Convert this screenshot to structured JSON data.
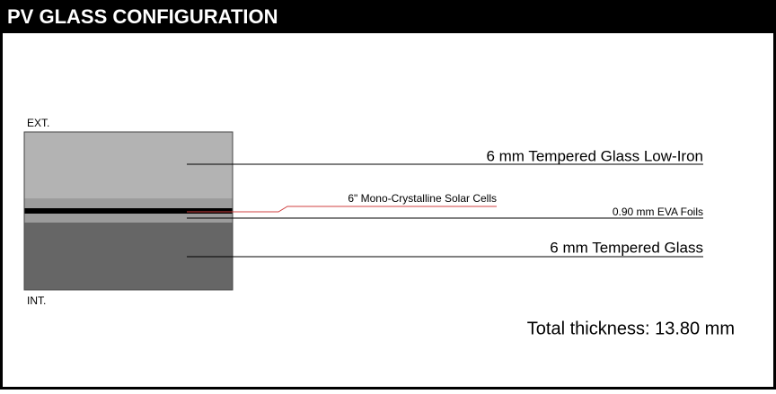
{
  "header": {
    "title": "PV GLASS CONFIGURATION"
  },
  "diagram": {
    "exterior_label": "EXT.",
    "interior_label": "INT.",
    "layers": [
      {
        "label": "6 mm Tempered Glass Low-Iron"
      },
      {
        "label": "6\" Mono-Crystalline Solar Cells"
      },
      {
        "label": "0.90 mm EVA Foils"
      },
      {
        "label": "6 mm Tempered Glass"
      }
    ],
    "total": "Total thickness: 13.80 mm"
  }
}
